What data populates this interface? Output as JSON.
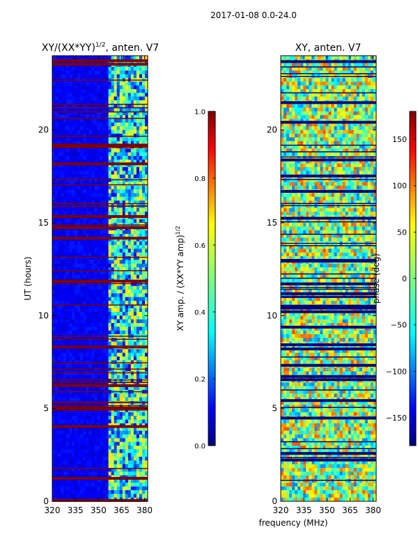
{
  "figure": {
    "suptitle": "2017-01-08 0.0-24.0",
    "shared_xlabel": "frequency (MHz)"
  },
  "chart_data": [
    {
      "type": "heatmap",
      "title_main": "XY/(XX*YY)",
      "title_sup": "1/2",
      "title_rest": ", anten. V7",
      "ylabel": "UT (hours)",
      "xlim": [
        320,
        382
      ],
      "ylim": [
        0,
        24
      ],
      "xticks": [
        320,
        335,
        350,
        365,
        380
      ],
      "yticks": [
        0,
        5,
        10,
        15,
        20
      ],
      "colorbar": {
        "label_main": "XY amp. / (XX*YY amp)",
        "label_sup": "1/2",
        "range": [
          0.0,
          1.0
        ],
        "ticks": [
          "0.0",
          "0.2",
          "0.4",
          "0.6",
          "0.8",
          "1.0"
        ],
        "colormap": "jet"
      }
    },
    {
      "type": "heatmap",
      "title": "XY, anten. V7",
      "ylabel": "",
      "xlim": [
        320,
        382
      ],
      "ylim": [
        0,
        24
      ],
      "xticks": [
        320,
        335,
        350,
        365,
        380
      ],
      "yticks": [
        0,
        5,
        10,
        15,
        20
      ],
      "colorbar": {
        "label": "phase (deg)",
        "range": [
          -180,
          180
        ],
        "ticks": [
          "−150",
          "−100",
          "−50",
          "0",
          "50",
          "100",
          "150"
        ],
        "colormap": "jet"
      }
    }
  ]
}
